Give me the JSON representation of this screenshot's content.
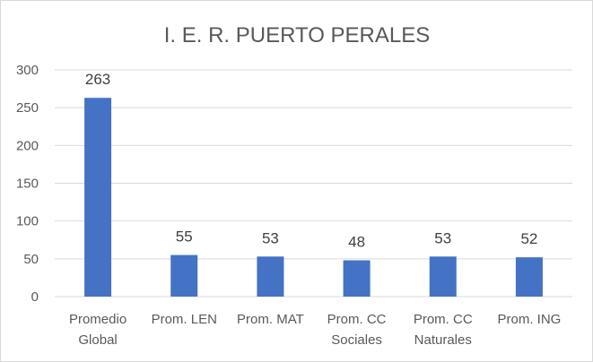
{
  "chart_data": {
    "type": "bar",
    "title": "I. E. R. PUERTO PERALES",
    "categories": [
      [
        "Promedio",
        "Global"
      ],
      [
        "Prom. LEN"
      ],
      [
        "Prom. MAT"
      ],
      [
        "Prom. CC",
        "Sociales"
      ],
      [
        "Prom. CC",
        "Naturales"
      ],
      [
        "Prom. ING"
      ]
    ],
    "values": [
      263,
      55,
      53,
      48,
      53,
      52
    ],
    "data_labels": [
      "263",
      "55",
      "53",
      "48",
      "53",
      "52"
    ],
    "ylim": [
      0,
      300
    ],
    "yticks": [
      "0",
      "50",
      "100",
      "150",
      "200",
      "250",
      "300"
    ],
    "xlabel": "",
    "ylabel": "",
    "grid": true,
    "legend": "none",
    "bar_color": "#4472c4"
  }
}
